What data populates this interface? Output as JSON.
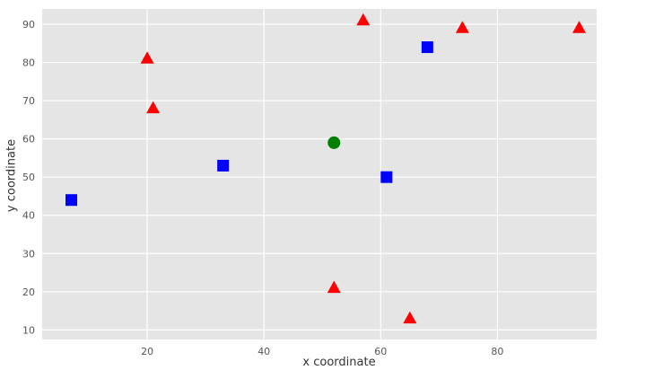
{
  "chart_data": {
    "type": "scatter",
    "title": "",
    "xlabel": "x coordinate",
    "ylabel": "y coordinate",
    "xlim": [
      2,
      97
    ],
    "ylim": [
      7.5,
      94
    ],
    "xticks": [
      20,
      40,
      60,
      80
    ],
    "yticks": [
      10,
      20,
      30,
      40,
      50,
      60,
      70,
      80,
      90
    ],
    "grid": true,
    "legend": "none",
    "plot_bg_color": "#e5e5e5",
    "grid_color": "#ffffff",
    "tick_label_color": "#555555",
    "series": [
      {
        "name": "red-triangles",
        "marker": "triangle",
        "color": "#ff0000",
        "points": [
          [
            20,
            81
          ],
          [
            21,
            68
          ],
          [
            52,
            21
          ],
          [
            57,
            91
          ],
          [
            65,
            13
          ],
          [
            74,
            89
          ],
          [
            94,
            89
          ]
        ]
      },
      {
        "name": "blue-squares",
        "marker": "square",
        "color": "#0000ff",
        "points": [
          [
            7,
            44
          ],
          [
            33,
            53
          ],
          [
            61,
            50
          ],
          [
            68,
            84
          ]
        ]
      },
      {
        "name": "green-circle",
        "marker": "circle",
        "color": "#008000",
        "points": [
          [
            52,
            59
          ]
        ]
      }
    ]
  }
}
